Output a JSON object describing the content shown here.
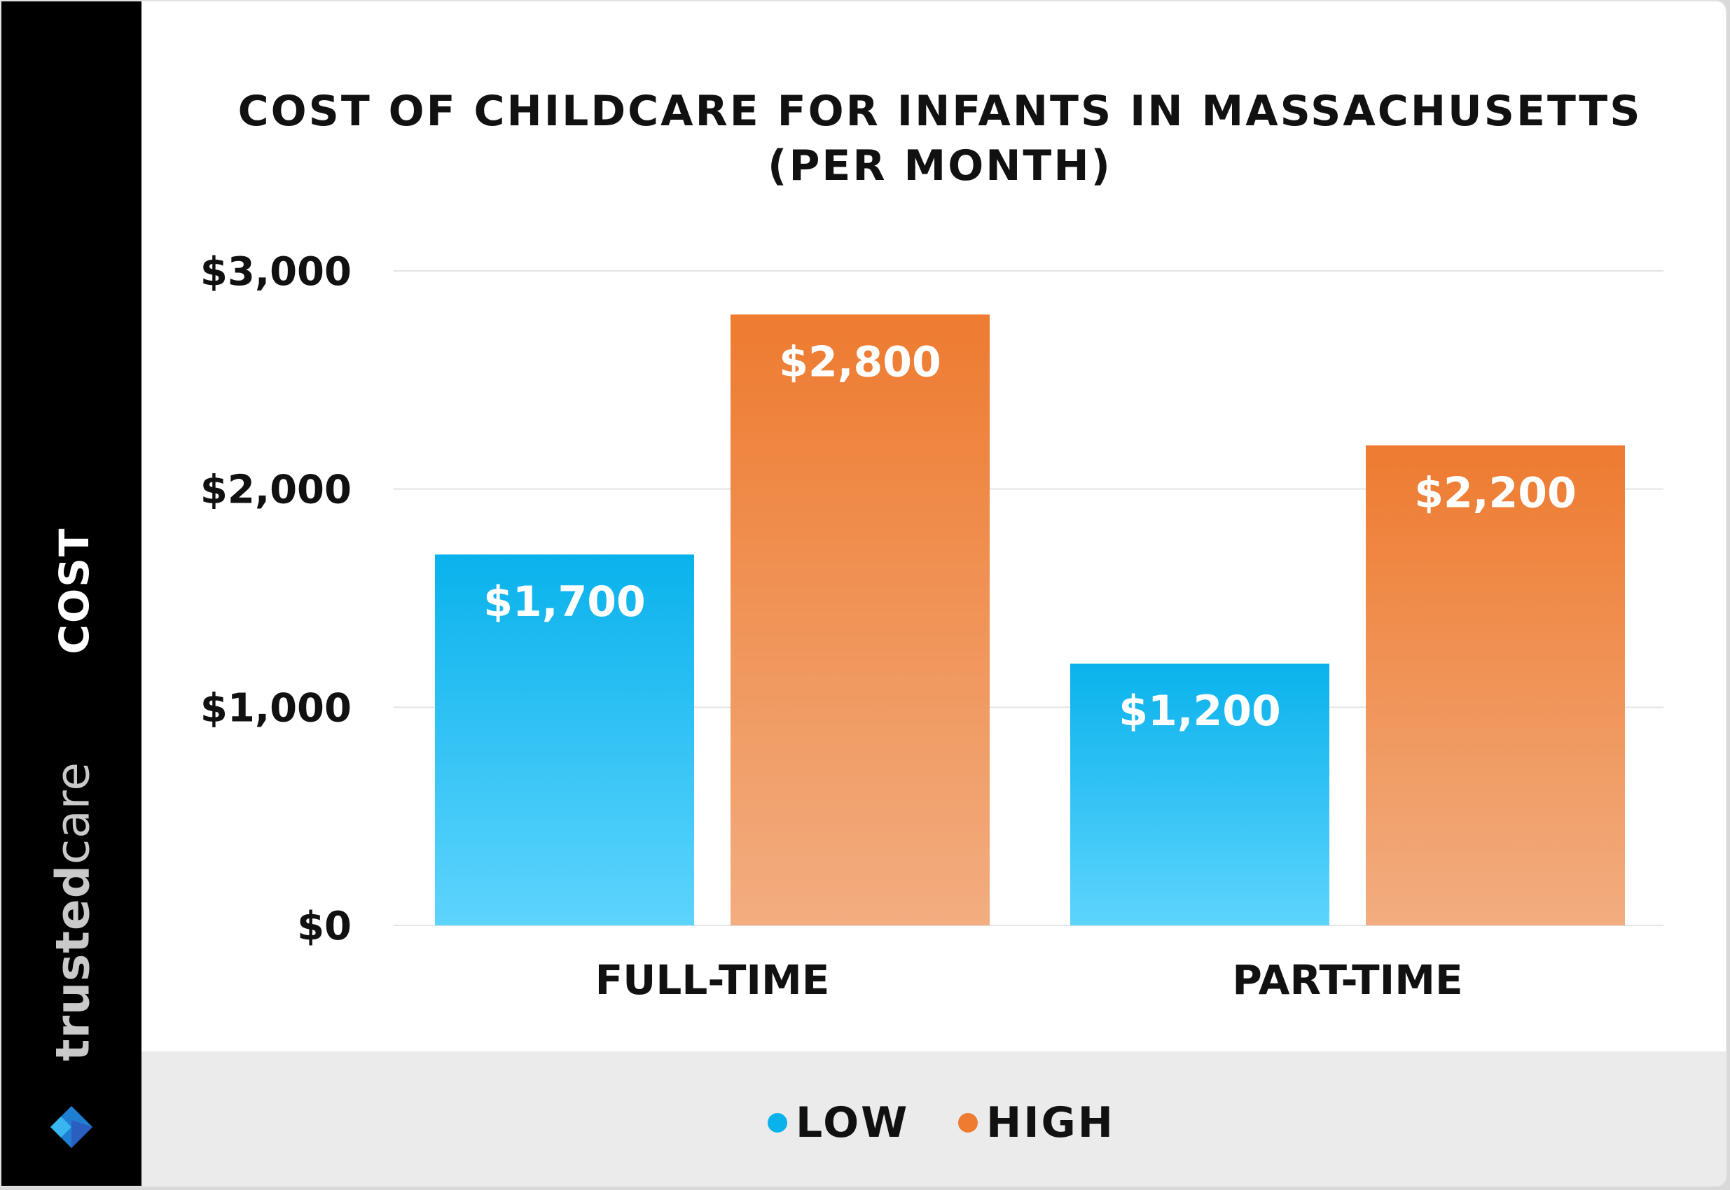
{
  "brand": {
    "name_bold": "trusted",
    "name_light": "care",
    "logo_icon": "heart-chevron-logo-icon"
  },
  "colors": {
    "low": "#0ab2ec",
    "high": "#ee7b30",
    "sidebar": "#000000",
    "footer": "#ebebeb"
  },
  "chart_data": {
    "type": "bar",
    "title_line1": "COST OF CHILDCARE FOR INFANTS IN MASSACHUSETTS",
    "title_line2": "(PER MONTH)",
    "ylabel": "COST",
    "xlabel": "",
    "categories": [
      "FULL-TIME",
      "PART-TIME"
    ],
    "series": [
      {
        "name": "LOW",
        "values": [
          1700,
          1200
        ],
        "labels": [
          "$1,700",
          "$1,200"
        ],
        "color": "#0ab2ec"
      },
      {
        "name": "HIGH",
        "values": [
          2800,
          2200
        ],
        "labels": [
          "$2,800",
          "$2,200"
        ],
        "color": "#ee7b30"
      }
    ],
    "ylim": [
      0,
      3000
    ],
    "yticks": [
      0,
      1000,
      2000,
      3000
    ],
    "ytick_labels": [
      "$0",
      "$1,000",
      "$2,000",
      "$3,000"
    ],
    "grid": true,
    "legend": "bottom"
  }
}
